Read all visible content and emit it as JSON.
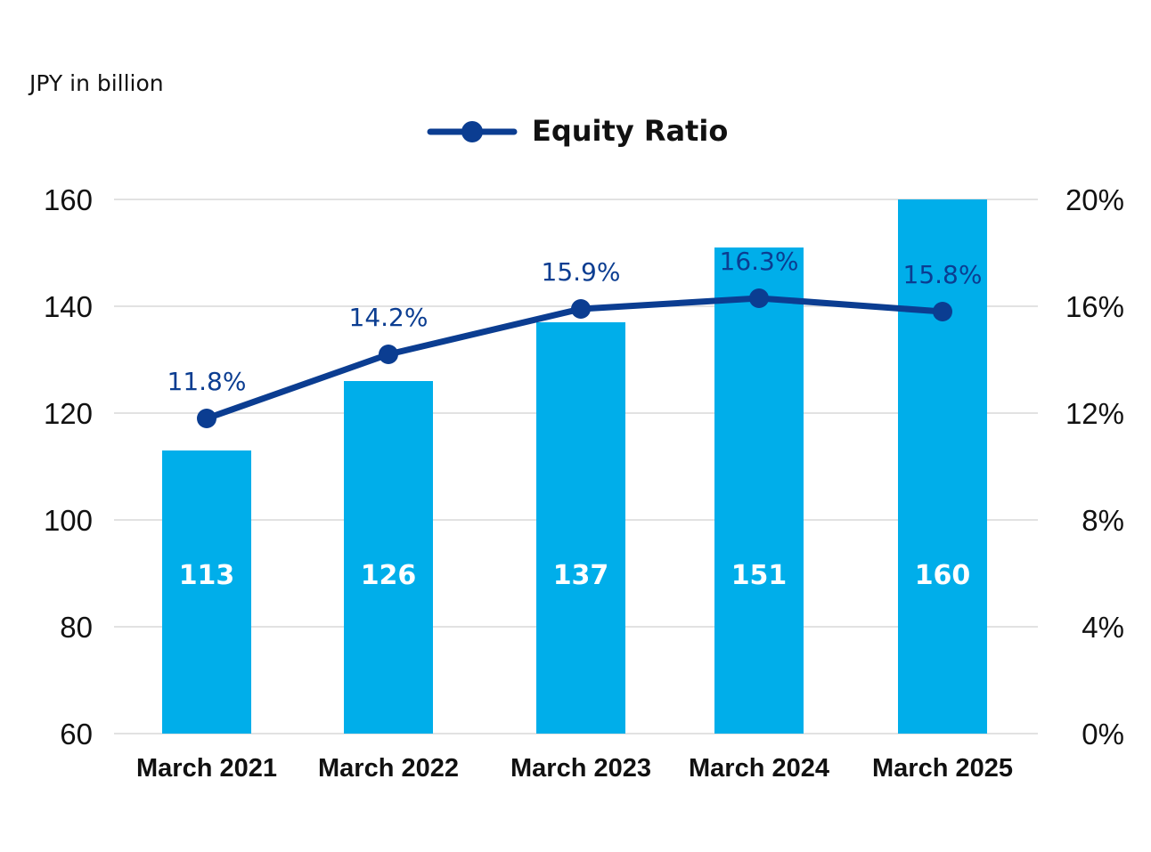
{
  "unit_label": "JPY in billion",
  "legend": {
    "label": "Equity Ratio"
  },
  "colors": {
    "bar": "#00aeea",
    "line": "#0b3d91",
    "grid": "#d9d9d9",
    "text": "#111111",
    "bar_label": "#ffffff"
  },
  "chart_data": {
    "type": "bar",
    "categories": [
      "March 2021",
      "March 2022",
      "March 2023",
      "March 2024",
      "March 2025"
    ],
    "series": [
      {
        "type": "bar",
        "axis": "left",
        "values": [
          113,
          126,
          137,
          151,
          160
        ],
        "labels": [
          "113",
          "126",
          "137",
          "151",
          "160"
        ]
      },
      {
        "type": "line",
        "axis": "right",
        "name": "Equity Ratio",
        "values": [
          11.8,
          14.2,
          15.9,
          16.3,
          15.8
        ],
        "labels": [
          "11.8%",
          "14.2%",
          "15.9%",
          "16.3%",
          "15.8%"
        ]
      }
    ],
    "left_axis": {
      "ylim": [
        60,
        160
      ],
      "ticks": [
        60,
        80,
        100,
        120,
        140,
        160
      ],
      "tick_labels": [
        "60",
        "80",
        "100",
        "120",
        "140",
        "160"
      ]
    },
    "right_axis": {
      "ylim": [
        0,
        20
      ],
      "ticks": [
        0,
        4,
        8,
        12,
        16,
        20
      ],
      "tick_labels": [
        "0%",
        "4%",
        "8%",
        "12%",
        "16%",
        "20%"
      ]
    },
    "grid": true,
    "legend_position": "top-center",
    "title": "",
    "xlabel": "",
    "ylabel": ""
  }
}
